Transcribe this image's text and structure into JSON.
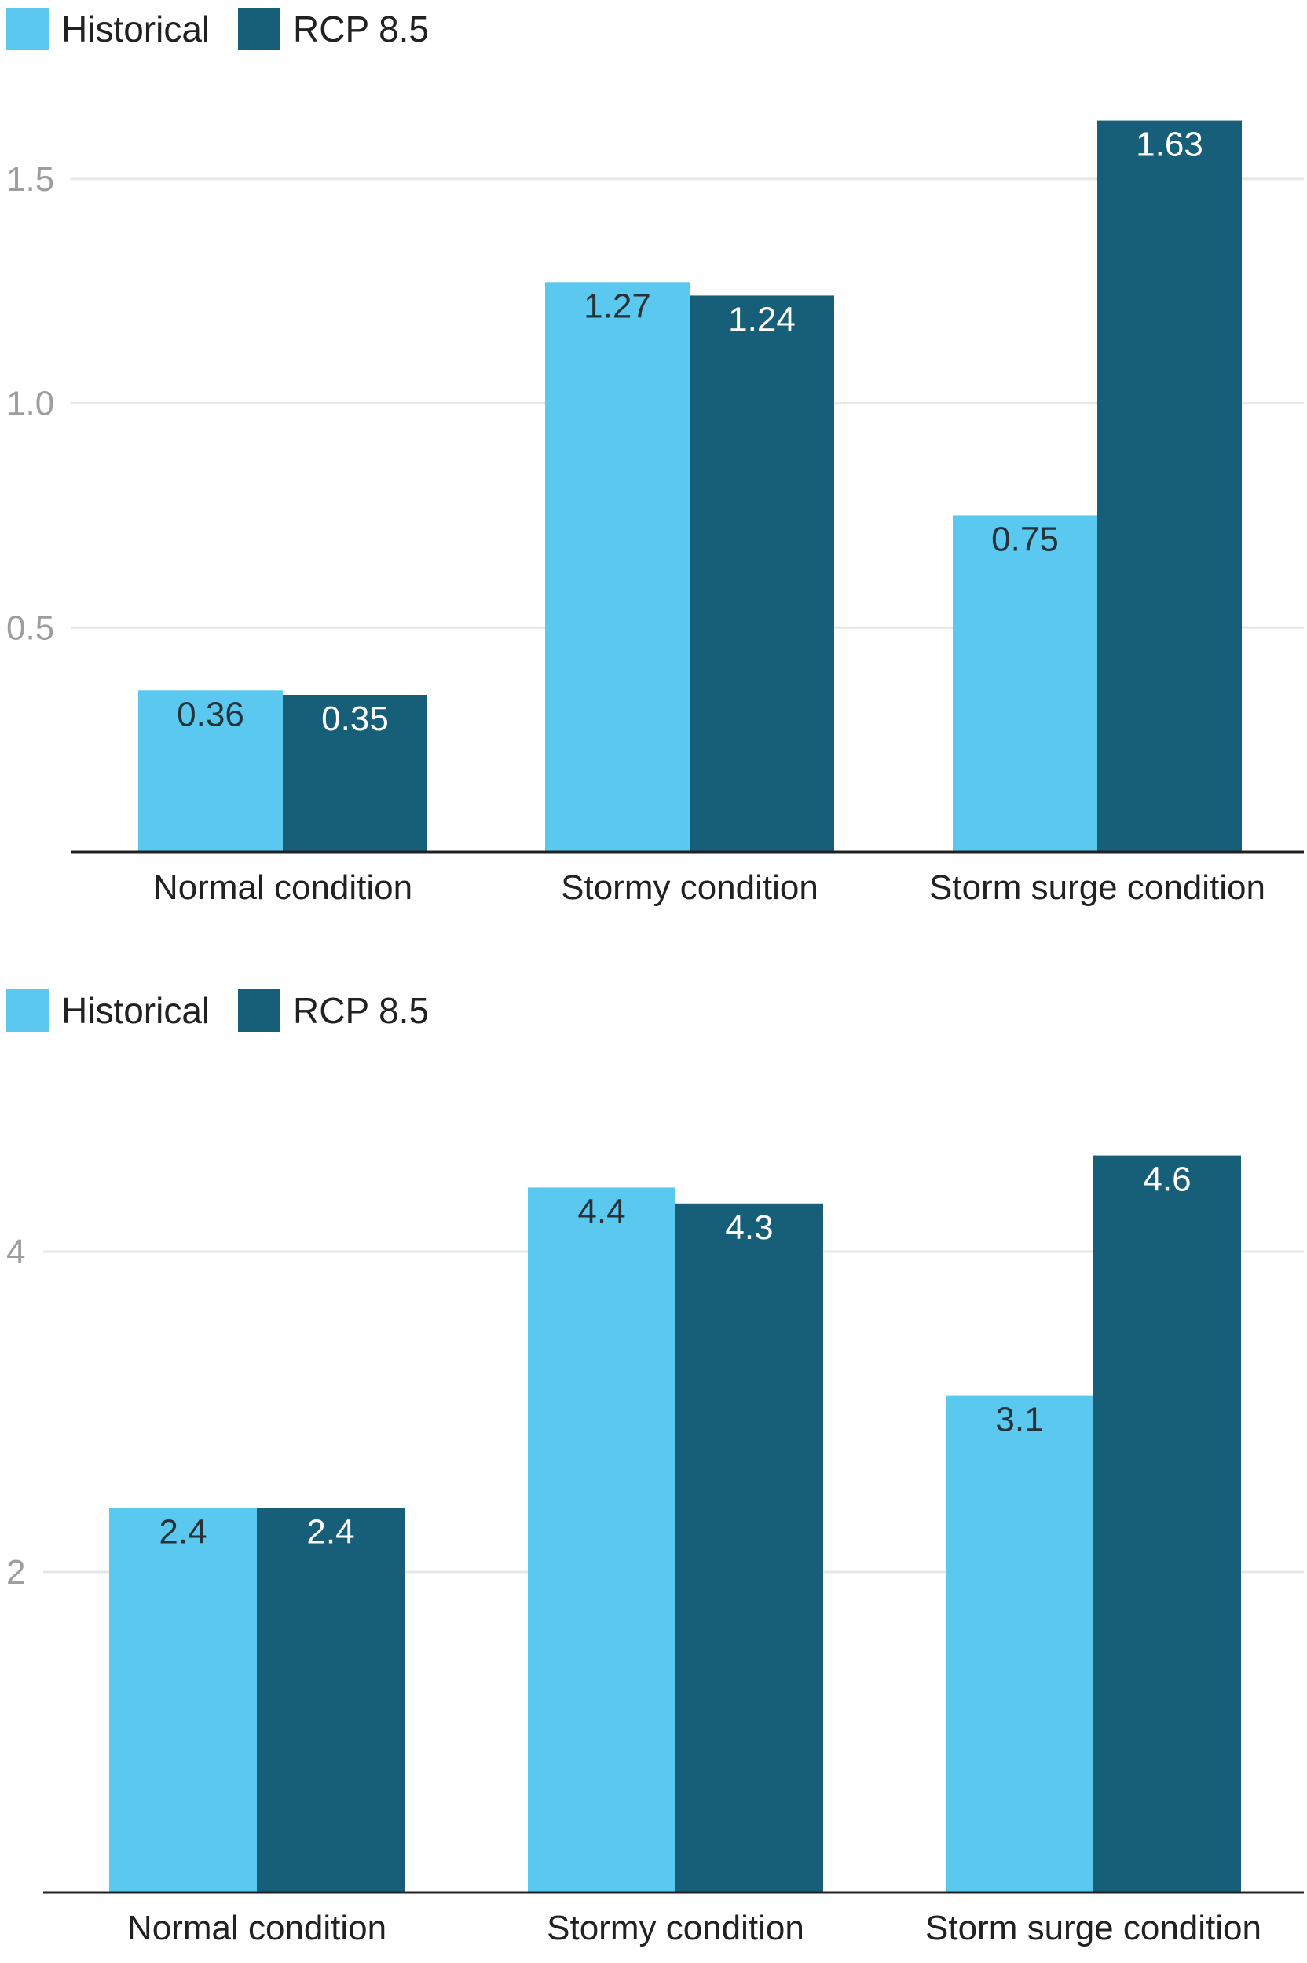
{
  "colors": {
    "historical": "#5bc8f0",
    "rcp85": "#175e79",
    "grid": "#e6e6e6",
    "axis": "#212121"
  },
  "chart_data": [
    {
      "type": "bar",
      "categories": [
        "Normal condition",
        "Stormy condition",
        "Storm surge condition"
      ],
      "series": [
        {
          "name": "Historical",
          "values": [
            0.36,
            1.27,
            0.75
          ]
        },
        {
          "name": "RCP 8.5",
          "values": [
            0.35,
            1.24,
            1.63
          ]
        }
      ],
      "data_labels": [
        [
          "0.36",
          "1.27",
          "0.75"
        ],
        [
          "0.35",
          "1.24",
          "1.63"
        ]
      ],
      "yticks": [
        0.5,
        1.0,
        1.5
      ],
      "ytick_labels": [
        "0.5",
        "1.0",
        "1.5"
      ],
      "ylim": [
        0,
        1.75
      ],
      "grid": true,
      "legend_position": "top-left",
      "title": "",
      "xlabel": "",
      "ylabel": ""
    },
    {
      "type": "bar",
      "categories": [
        "Normal condition",
        "Stormy condition",
        "Storm surge condition"
      ],
      "series": [
        {
          "name": "Historical",
          "values": [
            2.4,
            4.4,
            3.1
          ]
        },
        {
          "name": "RCP 8.5",
          "values": [
            2.4,
            4.3,
            4.6
          ]
        }
      ],
      "data_labels": [
        [
          "2.4",
          "4.4",
          "3.1"
        ],
        [
          "2.4",
          "4.3",
          "4.6"
        ]
      ],
      "yticks": [
        2,
        4
      ],
      "ytick_labels": [
        "2",
        "4"
      ],
      "ylim": [
        0,
        5
      ],
      "grid": true,
      "legend_position": "top-left",
      "title": "",
      "xlabel": "",
      "ylabel": ""
    }
  ]
}
